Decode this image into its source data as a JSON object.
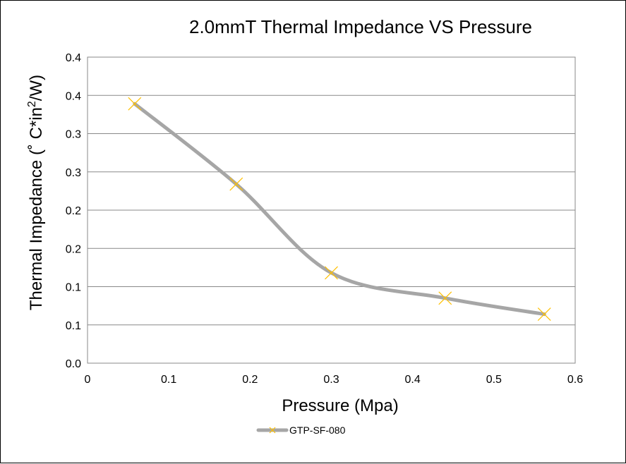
{
  "chart_data": {
    "type": "line",
    "title": "2.0mmT Thermal Impedance VS Pressure",
    "xlabel": "Pressure (Mpa)",
    "ylabel_main": "Thermal Impedance (˚ C*in",
    "ylabel_sup": "2",
    "ylabel_end": "/W)",
    "xlim": [
      0,
      0.6
    ],
    "ylim": [
      0,
      0.4
    ],
    "x_ticks": [
      0,
      0.1,
      0.2,
      0.3,
      0.4,
      0.5,
      0.6
    ],
    "x_tick_labels": [
      "0",
      "0.1",
      "0.2",
      "0.3",
      "0.4",
      "0.5",
      "0.6"
    ],
    "y_ticks": [
      0,
      0.05,
      0.1,
      0.15,
      0.2,
      0.25,
      0.3,
      0.35,
      0.4
    ],
    "y_tick_labels": [
      "0.0",
      "0.1",
      "0.1",
      "0.2",
      "0.2",
      "0.3",
      "0.3",
      "0.4",
      "0.4"
    ],
    "grid": "horizontal",
    "smooth": true,
    "legend_position": "bottom",
    "series": [
      {
        "name": "GTP-SF-080",
        "line_color": "#a6a6a6",
        "marker_color": "#ffc000",
        "marker": "x",
        "x": [
          0.058,
          0.183,
          0.3,
          0.44,
          0.562
        ],
        "y": [
          0.339,
          0.234,
          0.118,
          0.085,
          0.064
        ]
      }
    ]
  }
}
